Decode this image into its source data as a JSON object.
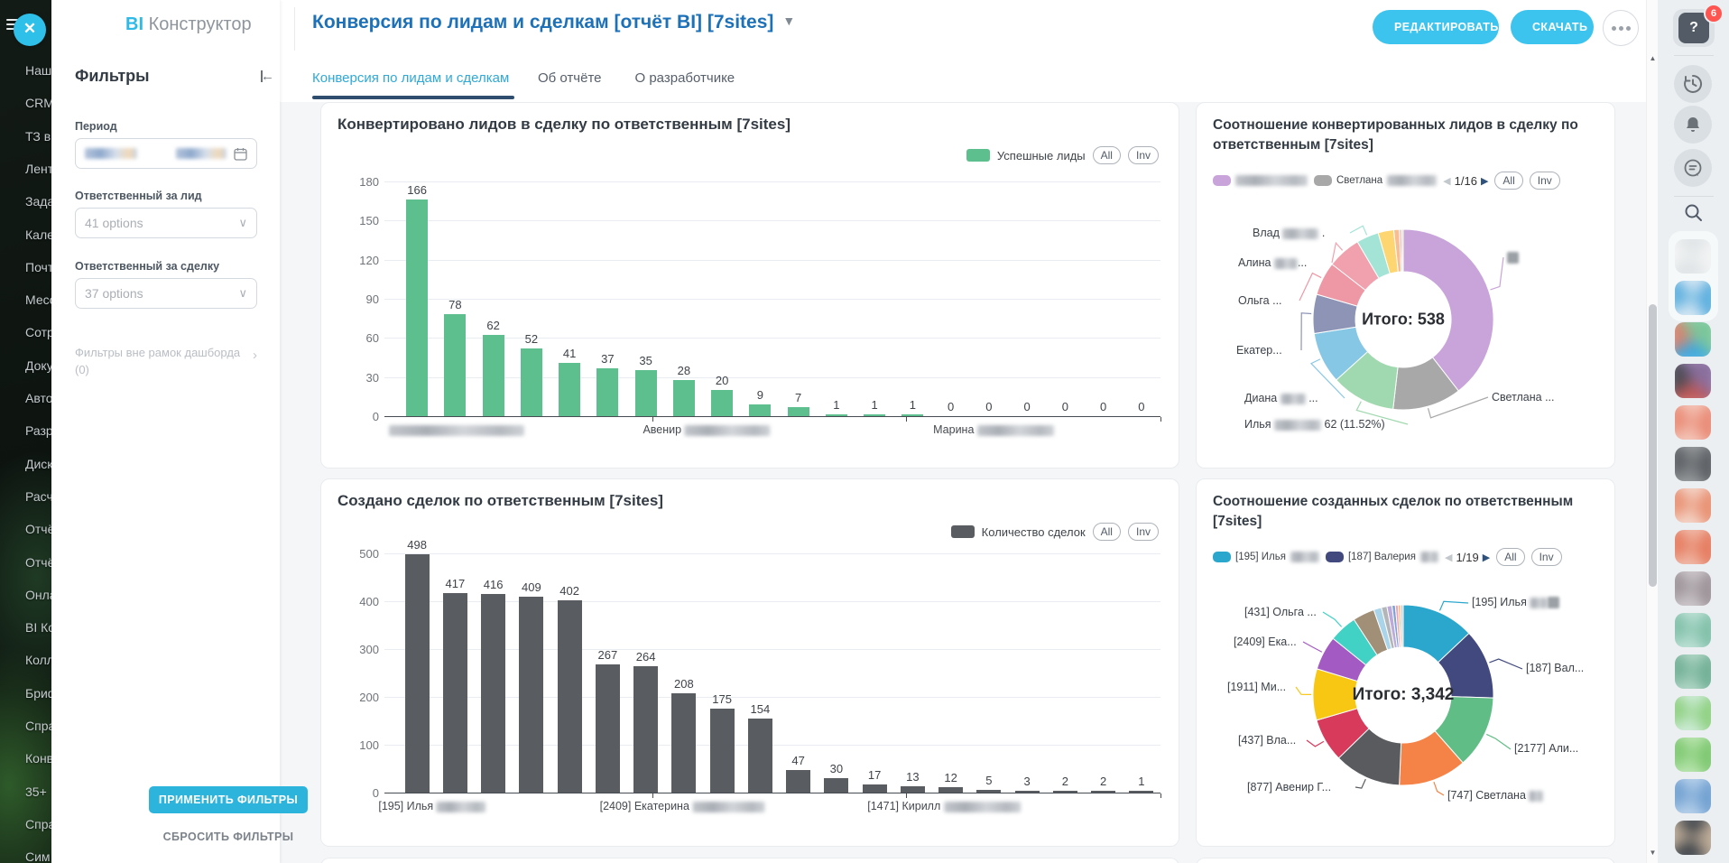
{
  "app": {
    "logo_prefix": "BI",
    "logo_suffix": "Конструктор",
    "close_glyph": "✕"
  },
  "left_menu": {
    "items": [
      "Наш",
      "CRM",
      "ТЗ в",
      "Лент",
      "Зада",
      "Кале",
      "Почт",
      "Месс",
      "Сотр",
      "Доку",
      "Авто",
      "Разр",
      "Диск",
      "Расч",
      "Отчё",
      "Отчё",
      "Онла",
      "BI Ко",
      "Колл",
      "Бриф",
      "Спра",
      "Конв",
      "35+",
      "Спра",
      "Сим"
    ]
  },
  "filters": {
    "title": "Фильтры",
    "period_label": "Период",
    "lead_label": "Ответственный за лид",
    "lead_value": "41 options",
    "deal_label": "Ответственный за сделку",
    "deal_value": "37 options",
    "outer_label": "Фильтры вне рамок дашборда",
    "outer_count": "(0)",
    "apply_label": "ПРИМЕНИТЬ ФИЛЬТРЫ",
    "reset_label": "СБРОСИТЬ ФИЛЬТРЫ"
  },
  "header": {
    "title": "Конверсия по лидам и сделкам [отчёт BI] [7sites]",
    "edit_label": "РЕДАКТИРОВАТЬ",
    "download_label": "СКАЧАТЬ"
  },
  "tabs": [
    {
      "label": "Конверсия по лидам и сделкам",
      "active": true
    },
    {
      "label": "Об отчёте",
      "active": false
    },
    {
      "label": "О разработчике",
      "active": false
    }
  ],
  "right_sidebar": {
    "help_badge": "6",
    "icons": [
      "help-icon",
      "history-icon",
      "bell-icon",
      "chat-icon",
      "search-icon"
    ],
    "avatars": [
      {
        "colors": [
          "#f0f2f3",
          "#dfe3e5"
        ]
      },
      {
        "colors": [
          "#5aaede",
          "#cfe4f2"
        ]
      },
      {
        "colors": [
          "#7cc79b",
          "#3fa9e0",
          "#d9836f"
        ]
      },
      {
        "colors": [
          "#8a6f9e",
          "#c05a5a",
          "#4a4a52"
        ]
      },
      {
        "colors": [
          "#e98a75",
          "#f3c0b2"
        ]
      },
      {
        "colors": [
          "#5b5f63",
          "#8d9093"
        ]
      },
      {
        "colors": [
          "#e88f70",
          "#f3d0c2"
        ]
      },
      {
        "colors": [
          "#e57a5e",
          "#efb3a0"
        ]
      },
      {
        "colors": [
          "#9b9297",
          "#c8c2c6"
        ]
      },
      {
        "colors": [
          "#7fbfa8",
          "#b6ddd0"
        ]
      },
      {
        "colors": [
          "#6fae94",
          "#a9d2c0"
        ]
      },
      {
        "colors": [
          "#8ed080",
          "#c9ead2"
        ]
      },
      {
        "colors": [
          "#7cc76f",
          "#b3e2a8"
        ]
      },
      {
        "colors": [
          "#6f9fd0",
          "#b0cce8"
        ]
      },
      {
        "colors": [
          "#b9a894",
          "#3b4148"
        ]
      }
    ]
  },
  "chart_data": [
    {
      "type": "bar",
      "title": "Конвертировано лидов в сделку по ответственным [7sites]",
      "legend": [
        {
          "label": "Успешные лиды",
          "color": "#5dbe8e"
        }
      ],
      "buttons": [
        "All",
        "Inv"
      ],
      "bar_color": "#5dbe8e",
      "values": [
        166,
        78,
        62,
        52,
        41,
        37,
        35,
        28,
        20,
        9,
        7,
        1,
        1,
        1,
        0,
        0,
        0,
        0,
        0,
        0
      ],
      "ylim": [
        0,
        180
      ],
      "yticks": [
        0,
        30,
        60,
        90,
        120,
        150,
        180
      ],
      "x_labels": [
        {
          "parts": [
            {
              "blur": 150
            }
          ]
        },
        {
          "parts": [
            {
              "t": "Авенир "
            },
            {
              "blur": 95
            }
          ]
        },
        {
          "parts": [
            {
              "t": "Марина "
            },
            {
              "blur": 85
            }
          ]
        }
      ]
    },
    {
      "type": "donut",
      "title": "Соотношение конвертированных лидов в сделку по ответственным [7sites]",
      "center_label": "Итого: 538",
      "total": 538,
      "pager": "1/16",
      "buttons": [
        "All",
        "Inv"
      ],
      "legend": [
        {
          "color": "#c9a4da",
          "parts": [
            {
              "blur": 80
            }
          ]
        },
        {
          "color": "#a8a8a8",
          "parts": [
            {
              "t": "Светлана "
            },
            {
              "blur": 55
            }
          ]
        }
      ],
      "slices": [
        {
          "color": "#c9a4da",
          "pct": 39.5
        },
        {
          "color": "#a8a8a8",
          "pct": 12.3
        },
        {
          "color": "#a0d9af",
          "pct": 11.52,
          "value": 62
        },
        {
          "color": "#87c7e6",
          "pct": 9.2
        },
        {
          "color": "#8d94b5",
          "pct": 7.0
        },
        {
          "color": "#ee98a5",
          "pct": 6.0
        },
        {
          "color": "#f0a1ad",
          "pct": 6.0
        },
        {
          "color": "#a3e4d6",
          "pct": 4.0
        },
        {
          "color": "#fdd671",
          "pct": 2.8
        },
        {
          "color": "#f9bd92",
          "pct": 1.0
        },
        {
          "color": "#f6b1be",
          "pct": 0.4
        },
        {
          "color": "#bcdca4",
          "pct": 0.28
        }
      ],
      "callouts": [
        {
          "slice": 7,
          "parts": [
            {
              "t": "Влад "
            },
            {
              "blur": 40
            },
            {
              "t": " ."
            }
          ]
        },
        {
          "slice": 6,
          "parts": [
            {
              "t": "Алина "
            },
            {
              "blur": 26
            },
            {
              "t": "..."
            }
          ]
        },
        {
          "slice": 5,
          "parts": [
            {
              "t": "Ольга ..."
            }
          ]
        },
        {
          "slice": 4,
          "parts": [
            {
              "t": "Екатер..."
            }
          ]
        },
        {
          "slice": 3,
          "parts": [
            {
              "t": "Диана "
            },
            {
              "blur": 28
            },
            {
              "t": " ..."
            }
          ]
        },
        {
          "slice": 2,
          "parts": [
            {
              "t": "Илья "
            },
            {
              "blur": 52
            },
            {
              "t": " 62 (11.52%)"
            }
          ]
        },
        {
          "slice": 0,
          "parts": [
            {
              "sq": true
            }
          ]
        },
        {
          "slice": 1,
          "parts": [
            {
              "t": "Светлана ..."
            }
          ]
        }
      ]
    },
    {
      "type": "bar",
      "title": "Создано сделок по ответственным [7sites]",
      "legend": [
        {
          "label": "Количество сделок",
          "color": "#595d61"
        }
      ],
      "buttons": [
        "All",
        "Inv"
      ],
      "bar_color": "#595d61",
      "values": [
        498,
        417,
        416,
        409,
        402,
        267,
        264,
        208,
        175,
        154,
        47,
        30,
        17,
        13,
        12,
        5,
        3,
        2,
        2,
        1
      ],
      "ylim": [
        0,
        500
      ],
      "yticks": [
        0,
        100,
        200,
        300,
        400,
        500
      ],
      "x_labels": [
        {
          "parts": [
            {
              "t": "[195] Илья "
            },
            {
              "blur": 55
            }
          ]
        },
        {
          "parts": [
            {
              "t": "[2409] Екатерина "
            },
            {
              "blur": 80
            }
          ]
        },
        {
          "parts": [
            {
              "t": "[1471] Кирилл "
            },
            {
              "blur": 85
            }
          ]
        }
      ]
    },
    {
      "type": "donut",
      "title": "Соотношение созданных сделок по ответственным [7sites]",
      "center_label": "Итого: 3,342",
      "total": 3342,
      "pager": "1/19",
      "buttons": [
        "All",
        "Inv"
      ],
      "legend": [
        {
          "color": "#2ba7cd",
          "parts": [
            {
              "t": "[195] Илья "
            },
            {
              "blur": 32
            }
          ]
        },
        {
          "color": "#41497e",
          "parts": [
            {
              "t": "[187] Валерия "
            },
            {
              "blur": 20
            }
          ]
        }
      ],
      "slices": [
        {
          "color": "#2ba7cd",
          "pct": 13.0
        },
        {
          "color": "#41497e",
          "pct": 12.5
        },
        {
          "color": "#60bd86",
          "pct": 13.0
        },
        {
          "color": "#f58347",
          "pct": 12.2
        },
        {
          "color": "#595b5e",
          "pct": 12.0
        },
        {
          "color": "#d83a5c",
          "pct": 7.8
        },
        {
          "color": "#f8c713",
          "pct": 9.2
        },
        {
          "color": "#a35ac2",
          "pct": 6.1
        },
        {
          "color": "#41d2c5",
          "pct": 5.0
        },
        {
          "color": "#a28f78",
          "pct": 3.9
        },
        {
          "color": "#a9d4e9",
          "pct": 1.4
        },
        {
          "color": "#b3b5b8",
          "pct": 1.0
        },
        {
          "color": "#bcabda",
          "pct": 0.9
        },
        {
          "color": "#80a2d4",
          "pct": 0.6
        },
        {
          "color": "#f2a2b6",
          "pct": 0.5
        },
        {
          "color": "#f7b26d",
          "pct": 0.4
        },
        {
          "color": "#d0d3d6",
          "pct": 0.5
        }
      ],
      "callouts": [
        {
          "slice": 0,
          "parts": [
            {
              "t": "[195] Илья "
            },
            {
              "blur": 20
            },
            {
              "sq": true
            }
          ]
        },
        {
          "slice": 1,
          "parts": [
            {
              "t": "[187] Вал..."
            }
          ]
        },
        {
          "slice": 2,
          "parts": [
            {
              "t": "[2177] Али..."
            }
          ]
        },
        {
          "slice": 3,
          "parts": [
            {
              "t": "[747] Светлана "
            },
            {
              "blur": 16
            }
          ]
        },
        {
          "slice": 4,
          "parts": [
            {
              "t": "[877] Авенир Г..."
            }
          ]
        },
        {
          "slice": 5,
          "parts": [
            {
              "t": "[437] Вла..."
            }
          ]
        },
        {
          "slice": 6,
          "parts": [
            {
              "t": "[1911] Ми..."
            }
          ]
        },
        {
          "slice": 7,
          "parts": [
            {
              "t": "[2409] Ека..."
            }
          ]
        },
        {
          "slice": 8,
          "parts": [
            {
              "t": "[431] Ольга ..."
            }
          ]
        }
      ]
    }
  ]
}
